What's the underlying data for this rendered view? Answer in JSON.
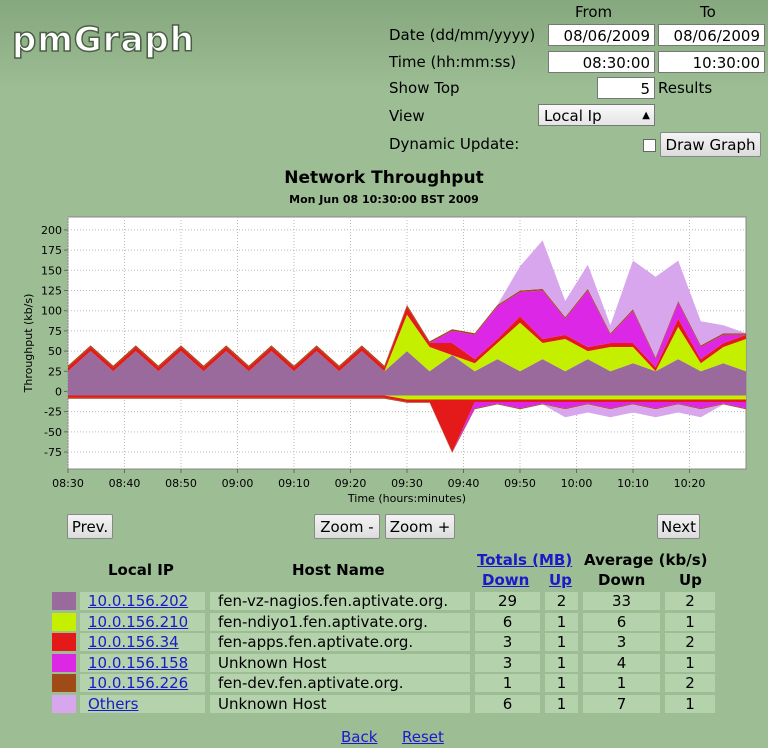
{
  "header": {
    "logo": "pmGraph"
  },
  "form": {
    "from_label": "From",
    "to_label": "To",
    "date_label": "Date (dd/mm/yyyy)",
    "date_from": "08/06/2009",
    "date_to": "08/06/2009",
    "time_label": "Time (hh:mm:ss)",
    "time_from": "08:30:00",
    "time_to": "10:30:00",
    "show_top_label": "Show Top",
    "show_top": 5,
    "results_label": "Results",
    "view_label": "View",
    "view": "Local Ip",
    "dynamic_label": "Dynamic Update:",
    "draw_button": "Draw Graph"
  },
  "chart": {
    "type": "area",
    "title": "Network Throughput",
    "subtitle": "Mon Jun 08 10:30:00 BST 2009",
    "xlabel": "Time (hours:minutes)",
    "ylabel": "Throughput (kb/s)",
    "x": [
      510,
      514,
      518,
      522,
      526,
      530,
      534,
      538,
      542,
      546,
      550,
      554,
      558,
      562,
      566,
      570,
      574,
      578,
      582,
      586,
      590,
      594,
      598,
      602,
      606,
      610,
      614,
      618,
      622,
      626,
      630
    ],
    "xlim": [
      510,
      630
    ],
    "ylim": [
      -96,
      216
    ],
    "xticks": [
      {
        "value": 510,
        "label": "08:30"
      },
      {
        "value": 520,
        "label": "08:40"
      },
      {
        "value": 530,
        "label": "08:50"
      },
      {
        "value": 540,
        "label": "09:00"
      },
      {
        "value": 550,
        "label": "09:10"
      },
      {
        "value": 560,
        "label": "09:20"
      },
      {
        "value": 570,
        "label": "09:30"
      },
      {
        "value": 580,
        "label": "09:40"
      },
      {
        "value": 590,
        "label": "09:50"
      },
      {
        "value": 600,
        "label": "10:00"
      },
      {
        "value": 610,
        "label": "10:10"
      },
      {
        "value": 620,
        "label": "10:20"
      }
    ],
    "yticks": [
      -75,
      -50,
      -25,
      0,
      25,
      50,
      75,
      100,
      125,
      150,
      175,
      200
    ],
    "grid": true,
    "series": [
      {
        "name": "10.0.156.202",
        "color": "#9a6a9c",
        "values": [
          25,
          50,
          25,
          50,
          25,
          50,
          25,
          50,
          25,
          50,
          25,
          50,
          25,
          50,
          25,
          50,
          25,
          45,
          25,
          40,
          25,
          40,
          25,
          40,
          25,
          35,
          25,
          40,
          25,
          35,
          25
        ],
        "up_values": [
          -5,
          -5,
          -5,
          -5,
          -5,
          -5,
          -5,
          -5,
          -5,
          -5,
          -5,
          -5,
          -5,
          -5,
          -5,
          -5,
          -5,
          -5,
          -5,
          -5,
          -5,
          -5,
          -5,
          -5,
          -5,
          -5,
          -5,
          -5,
          -5,
          -5,
          -5
        ]
      },
      {
        "name": "10.0.156.210",
        "color": "#c4f000",
        "values": [
          0,
          0,
          0,
          0,
          0,
          0,
          0,
          0,
          0,
          0,
          0,
          0,
          0,
          0,
          0,
          45,
          30,
          0,
          10,
          20,
          60,
          20,
          40,
          10,
          30,
          20,
          0,
          40,
          10,
          20,
          40
        ],
        "up_values": [
          0,
          0,
          0,
          0,
          0,
          0,
          0,
          0,
          0,
          0,
          0,
          0,
          0,
          0,
          0,
          -5,
          -5,
          -5,
          -5,
          -5,
          -5,
          -5,
          -5,
          -5,
          -5,
          -5,
          -5,
          -5,
          -5,
          -5,
          -5
        ]
      },
      {
        "name": "10.0.156.34",
        "color": "#e41a1a",
        "values": [
          5,
          5,
          5,
          5,
          5,
          5,
          5,
          5,
          5,
          5,
          5,
          5,
          5,
          5,
          5,
          10,
          5,
          15,
          5,
          5,
          8,
          5,
          5,
          5,
          5,
          5,
          5,
          10,
          5,
          5,
          5
        ],
        "up_values": [
          -3,
          -3,
          -3,
          -3,
          -3,
          -3,
          -3,
          -3,
          -3,
          -3,
          -3,
          -3,
          -3,
          -3,
          -3,
          -3,
          -3,
          -65,
          -3,
          -3,
          -3,
          -3,
          -3,
          -3,
          -3,
          -3,
          -3,
          -3,
          -3,
          -3,
          -3
        ]
      },
      {
        "name": "10.0.156.158",
        "color": "#dc28e6",
        "values": [
          0,
          0,
          0,
          0,
          0,
          0,
          0,
          0,
          0,
          0,
          0,
          0,
          0,
          0,
          0,
          0,
          0,
          15,
          30,
          40,
          30,
          60,
          20,
          70,
          10,
          40,
          10,
          20,
          15,
          10,
          0
        ],
        "up_values": [
          0,
          0,
          0,
          0,
          0,
          0,
          0,
          0,
          0,
          0,
          0,
          0,
          0,
          0,
          0,
          0,
          0,
          0,
          -8,
          -2,
          -8,
          -2,
          -8,
          -2,
          -8,
          -2,
          -8,
          -2,
          -8,
          -2,
          -8
        ]
      },
      {
        "name": "10.0.156.226",
        "color": "#a04a18",
        "values": [
          2,
          2,
          2,
          2,
          2,
          2,
          2,
          2,
          2,
          2,
          2,
          2,
          2,
          2,
          2,
          2,
          2,
          2,
          2,
          2,
          2,
          2,
          2,
          2,
          2,
          2,
          2,
          2,
          2,
          2,
          2
        ],
        "up_values": [
          -1,
          -1,
          -1,
          -1,
          -1,
          -1,
          -1,
          -1,
          -1,
          -1,
          -1,
          -1,
          -1,
          -1,
          -1,
          -1,
          -1,
          -1,
          -1,
          -1,
          -1,
          -1,
          -1,
          -1,
          -1,
          -1,
          -1,
          -1,
          -1,
          -1,
          -1
        ]
      },
      {
        "name": "Others",
        "color": "#d8a6ec",
        "values": [
          0,
          0,
          0,
          0,
          0,
          0,
          0,
          0,
          0,
          0,
          0,
          0,
          0,
          0,
          0,
          0,
          0,
          0,
          0,
          0,
          30,
          60,
          20,
          30,
          10,
          60,
          100,
          50,
          30,
          10,
          0
        ],
        "up_values": [
          0,
          0,
          0,
          0,
          0,
          0,
          0,
          0,
          0,
          0,
          0,
          0,
          0,
          0,
          0,
          0,
          0,
          0,
          0,
          0,
          0,
          0,
          -10,
          -10,
          -10,
          -10,
          -10,
          -10,
          -10,
          0,
          0
        ]
      }
    ]
  },
  "nav": {
    "prev": "Prev.",
    "zoom_out": "Zoom -",
    "zoom_in": "Zoom +",
    "next": "Next"
  },
  "table": {
    "local_ip": "Local IP",
    "host_name": "Host Name",
    "totals": "Totals (MB)",
    "average": "Average (kb/s)",
    "down": "Down",
    "up": "Up",
    "avg_down": "Down",
    "avg_up": "Up",
    "rows": [
      {
        "host": "fen-vz-nagios.fen.aptivate.org.",
        "down": 29,
        "up": 2,
        "avg_down": 33,
        "avg_up": 2
      },
      {
        "host": "fen-ndiyo1.fen.aptivate.org.",
        "down": 6,
        "up": 1,
        "avg_down": 6,
        "avg_up": 1
      },
      {
        "host": "fen-apps.fen.aptivate.org.",
        "down": 3,
        "up": 1,
        "avg_down": 3,
        "avg_up": 2
      },
      {
        "host": "Unknown Host",
        "down": 3,
        "up": 1,
        "avg_down": 4,
        "avg_up": 1
      },
      {
        "host": "fen-dev.fen.aptivate.org.",
        "down": 1,
        "up": 1,
        "avg_down": 1,
        "avg_up": 2
      },
      {
        "host": "Unknown Host",
        "down": 6,
        "up": 1,
        "avg_down": 7,
        "avg_up": 1
      }
    ]
  },
  "footer": {
    "back": "Back",
    "reset": "Reset"
  }
}
